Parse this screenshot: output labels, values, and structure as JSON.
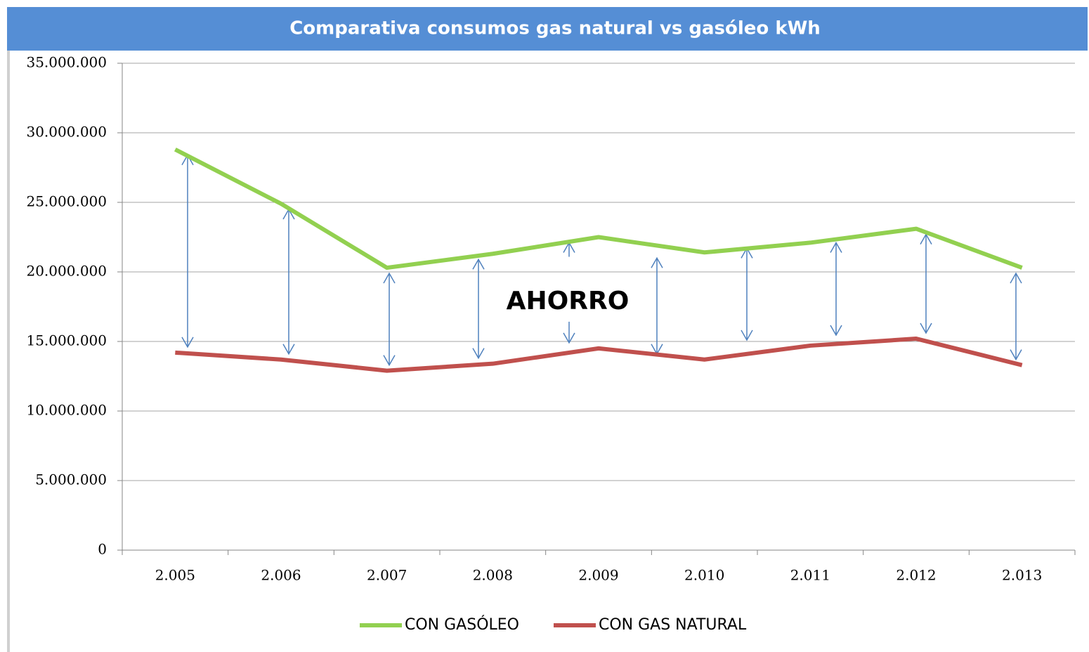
{
  "chart_data": {
    "type": "line",
    "title": "Comparativa consumos gas natural  vs gasóleo kWh",
    "annotation": "AHORRO",
    "categories": [
      "2.005",
      "2.006",
      "2.007",
      "2.008",
      "2.009",
      "2.010",
      "2.011",
      "2.012",
      "2.013"
    ],
    "series": [
      {
        "name": "CON GASÓLEO",
        "color": "#92d050",
        "values": [
          28800000,
          24900000,
          20300000,
          21300000,
          22500000,
          21400000,
          22100000,
          23100000,
          20300000
        ]
      },
      {
        "name": "CON GAS NATURAL",
        "color": "#c0504d",
        "values": [
          14200000,
          13700000,
          12900000,
          13400000,
          14500000,
          13700000,
          14700000,
          15200000,
          13300000
        ]
      }
    ],
    "ylim": [
      0,
      35000000
    ],
    "yticks": [
      {
        "value": 0,
        "label": "0"
      },
      {
        "value": 5000000,
        "label": "5.000.000"
      },
      {
        "value": 10000000,
        "label": "10.000.000"
      },
      {
        "value": 15000000,
        "label": "15.000.000"
      },
      {
        "value": 20000000,
        "label": "20.000.000"
      },
      {
        "value": 25000000,
        "label": "25.000.000"
      },
      {
        "value": 30000000,
        "label": "30.000.000"
      },
      {
        "value": 35000000,
        "label": "35.000.000"
      }
    ],
    "grid": true,
    "legend": "bottom"
  }
}
